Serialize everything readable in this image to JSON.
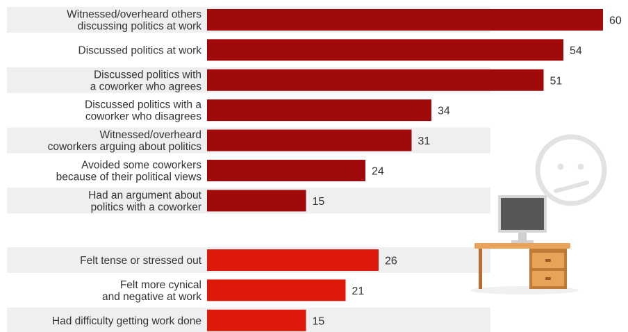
{
  "chart_data": {
    "type": "bar",
    "orientation": "horizontal",
    "title": "",
    "xlabel": "",
    "ylabel": "",
    "xlim": [
      0,
      60
    ],
    "grid": false,
    "legend": "none",
    "groups": [
      {
        "color": "#a10a0b",
        "items": [
          {
            "label": [
              "Witnessed/overheard others",
              "discussing politics at work"
            ],
            "value": 60
          },
          {
            "label": [
              "Discussed politics at work"
            ],
            "value": 54
          },
          {
            "label": [
              "Discussed politics with",
              "a coworker who agrees"
            ],
            "value": 51
          },
          {
            "label": [
              "Discussed politics with a",
              "coworker who disagrees"
            ],
            "value": 34
          },
          {
            "label": [
              "Witnessed/overheard",
              "coworkers arguing about politics"
            ],
            "value": 31
          },
          {
            "label": [
              "Avoided some coworkers",
              "because of their political views"
            ],
            "value": 24
          },
          {
            "label": [
              "Had an argument about",
              "politics with a coworker"
            ],
            "value": 15
          }
        ]
      },
      {
        "color": "#dd1a0a",
        "items": [
          {
            "label": [
              "Felt tense or stressed out"
            ],
            "value": 26
          },
          {
            "label": [
              "Felt more cynical",
              "and negative at work"
            ],
            "value": 21
          },
          {
            "label": [
              "Had difficulty getting work done"
            ],
            "value": 15
          }
        ]
      }
    ]
  },
  "illustration": {
    "icons": [
      "neutral-face-icon",
      "computer-monitor-icon",
      "office-desk-icon"
    ],
    "colors": {
      "face": "#e4e4e4",
      "monitor": "#555555",
      "desk": "#d18a43",
      "drawer": "#e59c52"
    }
  }
}
